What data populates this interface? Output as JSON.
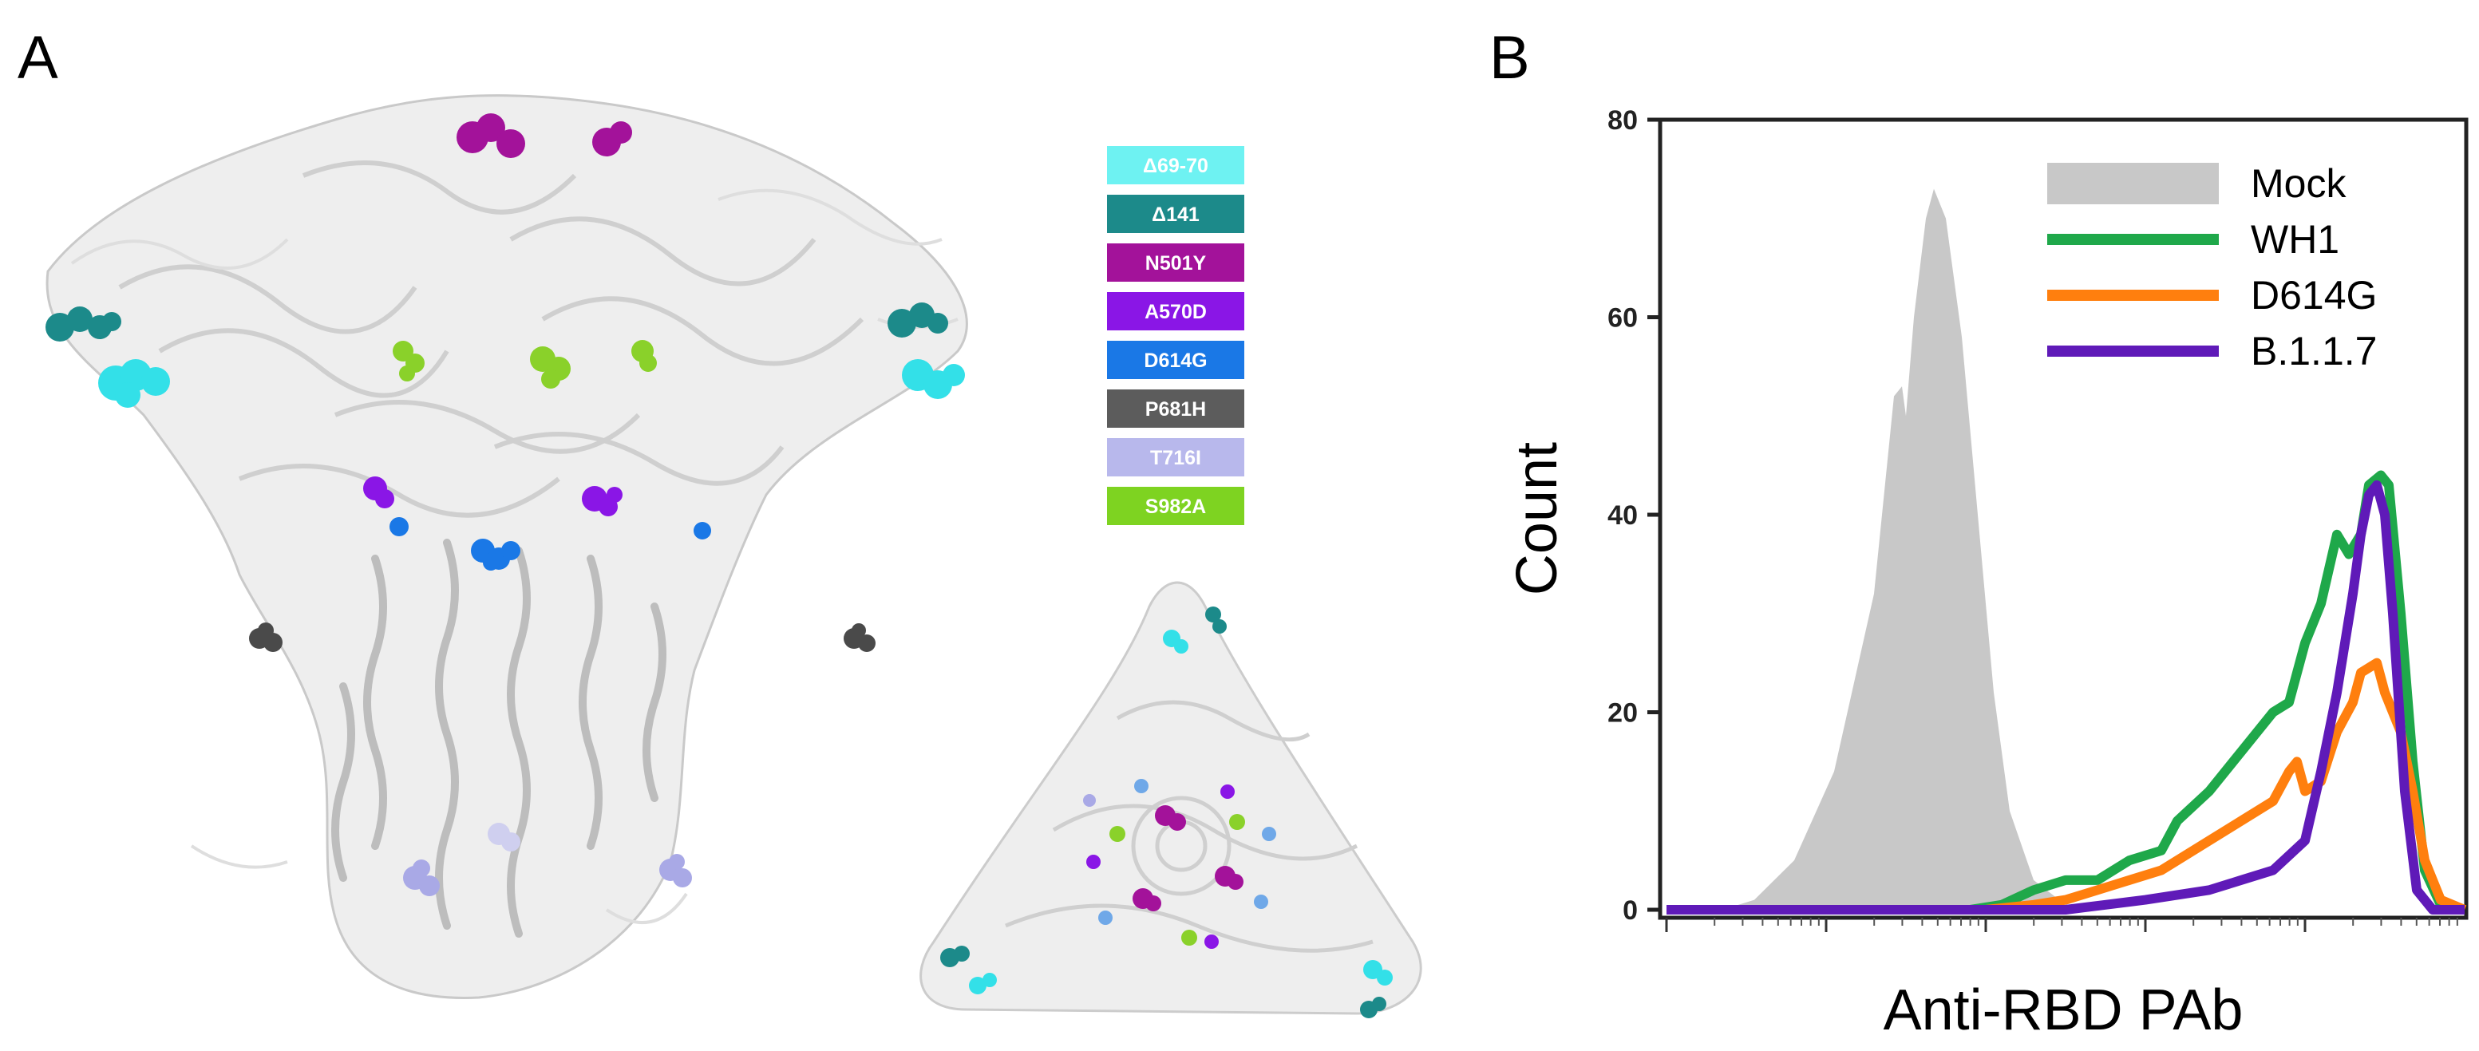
{
  "panels": {
    "a_label": "A",
    "b_label": "B"
  },
  "mutations_legend": [
    {
      "label": "Δ69-70",
      "color": "#6ef2f2"
    },
    {
      "label": "Δ141",
      "color": "#1c8a8a"
    },
    {
      "label": "N501Y",
      "color": "#a3129a"
    },
    {
      "label": "A570D",
      "color": "#8a16e6"
    },
    {
      "label": "D614G",
      "color": "#1a78e6"
    },
    {
      "label": "P681H",
      "color": "#5c5c5c"
    },
    {
      "label": "T716I",
      "color": "#b8b8ec"
    },
    {
      "label": "S982A",
      "color": "#7ed321"
    }
  ],
  "chart_data": {
    "type": "area",
    "xlabel": "Anti-RBD PAb",
    "ylabel": "Count",
    "ylim": [
      0,
      80
    ],
    "y_ticks": [
      "0",
      "20",
      "40",
      "60",
      "80"
    ],
    "x_scale": "log",
    "legend_placement": "top-right",
    "series": [
      {
        "name": "Mock",
        "color": "#c8c8c8",
        "fill": true,
        "points": [
          [
            0.07,
            0
          ],
          [
            0.11,
            1
          ],
          [
            0.16,
            5
          ],
          [
            0.21,
            14
          ],
          [
            0.26,
            32
          ],
          [
            0.285,
            52
          ],
          [
            0.295,
            53
          ],
          [
            0.3,
            50
          ],
          [
            0.31,
            60
          ],
          [
            0.325,
            70
          ],
          [
            0.335,
            73
          ],
          [
            0.35,
            70
          ],
          [
            0.37,
            58
          ],
          [
            0.39,
            40
          ],
          [
            0.41,
            22
          ],
          [
            0.43,
            10
          ],
          [
            0.46,
            3
          ],
          [
            0.5,
            0.5
          ],
          [
            0.55,
            0
          ]
        ]
      },
      {
        "name": "WH1",
        "color": "#1fa84a",
        "fill": false,
        "points": [
          [
            0.0,
            0
          ],
          [
            0.38,
            0
          ],
          [
            0.42,
            0.5
          ],
          [
            0.46,
            2
          ],
          [
            0.5,
            3
          ],
          [
            0.54,
            3
          ],
          [
            0.58,
            5
          ],
          [
            0.62,
            6
          ],
          [
            0.64,
            9
          ],
          [
            0.68,
            12
          ],
          [
            0.72,
            16
          ],
          [
            0.76,
            20
          ],
          [
            0.78,
            21
          ],
          [
            0.8,
            27
          ],
          [
            0.82,
            31
          ],
          [
            0.84,
            38
          ],
          [
            0.855,
            36
          ],
          [
            0.87,
            38
          ],
          [
            0.88,
            43
          ],
          [
            0.895,
            44
          ],
          [
            0.905,
            43
          ],
          [
            0.92,
            30
          ],
          [
            0.935,
            15
          ],
          [
            0.95,
            4
          ],
          [
            0.97,
            0.5
          ],
          [
            1.0,
            0
          ]
        ]
      },
      {
        "name": "D614G",
        "color": "#ff7f0e",
        "fill": false,
        "points": [
          [
            0.0,
            0
          ],
          [
            0.4,
            0
          ],
          [
            0.46,
            0.5
          ],
          [
            0.5,
            1
          ],
          [
            0.54,
            2
          ],
          [
            0.58,
            3
          ],
          [
            0.62,
            4
          ],
          [
            0.64,
            5
          ],
          [
            0.68,
            7
          ],
          [
            0.72,
            9
          ],
          [
            0.76,
            11
          ],
          [
            0.78,
            14
          ],
          [
            0.79,
            15
          ],
          [
            0.8,
            12
          ],
          [
            0.82,
            13
          ],
          [
            0.84,
            18
          ],
          [
            0.86,
            21
          ],
          [
            0.87,
            24
          ],
          [
            0.89,
            25
          ],
          [
            0.9,
            22
          ],
          [
            0.92,
            18
          ],
          [
            0.935,
            12
          ],
          [
            0.95,
            5
          ],
          [
            0.97,
            1
          ],
          [
            1.0,
            0
          ]
        ]
      },
      {
        "name": "B.1.1.7",
        "color": "#5f1ab8",
        "fill": false,
        "points": [
          [
            0.0,
            0
          ],
          [
            0.5,
            0
          ],
          [
            0.55,
            0.5
          ],
          [
            0.6,
            1
          ],
          [
            0.64,
            1.5
          ],
          [
            0.68,
            2
          ],
          [
            0.72,
            3
          ],
          [
            0.76,
            4
          ],
          [
            0.8,
            7
          ],
          [
            0.82,
            14
          ],
          [
            0.84,
            22
          ],
          [
            0.86,
            32
          ],
          [
            0.87,
            38
          ],
          [
            0.88,
            42
          ],
          [
            0.89,
            43
          ],
          [
            0.9,
            40
          ],
          [
            0.91,
            30
          ],
          [
            0.925,
            12
          ],
          [
            0.94,
            2
          ],
          [
            0.96,
            0
          ],
          [
            1.0,
            0
          ]
        ]
      }
    ]
  }
}
